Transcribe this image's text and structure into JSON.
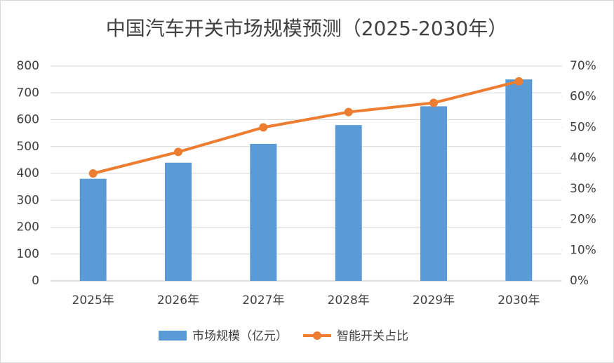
{
  "chart_data": {
    "type": "combo",
    "title": "中国汽车开关市场规模预测（2025-2030年）",
    "categories": [
      "2025年",
      "2026年",
      "2027年",
      "2028年",
      "2029年",
      "2030年"
    ],
    "series": [
      {
        "name": "市场规模（亿元）",
        "type": "bar",
        "color": "#5b9bd5",
        "values": [
          380,
          440,
          510,
          580,
          650,
          750
        ]
      },
      {
        "name": "智能开关占比",
        "type": "line",
        "axis": "y2",
        "color": "#ed7d31",
        "values": [
          35,
          42,
          50,
          55,
          58,
          65
        ]
      }
    ],
    "ylim": [
      0,
      800
    ],
    "yticks": [
      0,
      100,
      200,
      300,
      400,
      500,
      600,
      700,
      800
    ],
    "y2lim": [
      0,
      70
    ],
    "y2ticks": [
      {
        "value": 0,
        "label": "0%"
      },
      {
        "value": 10,
        "label": "10%"
      },
      {
        "value": 20,
        "label": "20%"
      },
      {
        "value": 30,
        "label": "30%"
      },
      {
        "value": 40,
        "label": "40%"
      },
      {
        "value": 50,
        "label": "50%"
      },
      {
        "value": 60,
        "label": "60%"
      },
      {
        "value": 70,
        "label": "70%"
      }
    ],
    "grid": true,
    "legend": "bottom"
  }
}
